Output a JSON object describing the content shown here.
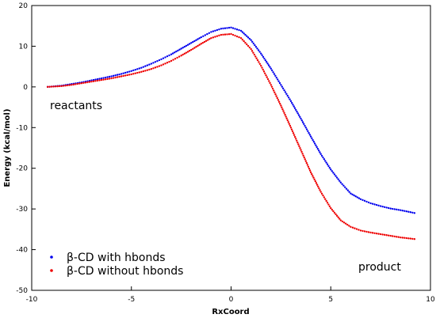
{
  "chart_data": {
    "type": "scatter",
    "xlabel": "RxCoord",
    "ylabel": "Energy (kcal/mol)",
    "xlim": [
      -10,
      10
    ],
    "ylim": [
      -50,
      20
    ],
    "x_ticks": [
      -10,
      -5,
      0,
      5,
      10
    ],
    "y_ticks": [
      20,
      10,
      0,
      -10,
      -20,
      -30,
      -40,
      -50
    ],
    "x_tick_labels": [
      "-10",
      "-5",
      "0",
      "5",
      "10"
    ],
    "y_tick_labels": [
      "20",
      "10",
      "0",
      "-10",
      "-20",
      "-30",
      "-40",
      "-50"
    ],
    "grid": false,
    "legend_position": "bottom-left",
    "annotations": [
      {
        "text": "reactants",
        "x": -9.2,
        "y": -5
      },
      {
        "text": "product",
        "x": 6.3,
        "y": -44.5
      }
    ],
    "series": [
      {
        "name": "β-CD with hbonds",
        "color": "#0000ee",
        "x": [
          -9.2,
          -8.5,
          -8,
          -7.5,
          -7,
          -6.5,
          -6,
          -5.5,
          -5,
          -4.5,
          -4,
          -3.5,
          -3,
          -2.5,
          -2,
          -1.5,
          -1,
          -0.5,
          0,
          0.5,
          1,
          1.5,
          2,
          2.5,
          3,
          3.5,
          4,
          4.5,
          5,
          5.5,
          6,
          6.5,
          7,
          7.5,
          8,
          8.5,
          9.2
        ],
        "y": [
          0,
          0.3,
          0.7,
          1.1,
          1.6,
          2.1,
          2.6,
          3.2,
          3.9,
          4.7,
          5.7,
          6.8,
          8.0,
          9.4,
          10.8,
          12.2,
          13.5,
          14.3,
          14.6,
          13.8,
          11.5,
          8.2,
          4.5,
          0.5,
          -3.5,
          -7.8,
          -12.2,
          -16.5,
          -20.3,
          -23.5,
          -26.2,
          -27.6,
          -28.6,
          -29.3,
          -29.9,
          -30.3,
          -31.0
        ]
      },
      {
        "name": "β-CD without hbonds",
        "color": "#ee0000",
        "x": [
          -9.2,
          -8.5,
          -8,
          -7.5,
          -7,
          -6.5,
          -6,
          -5.5,
          -5,
          -4.5,
          -4,
          -3.5,
          -3,
          -2.5,
          -2,
          -1.5,
          -1,
          -0.5,
          0,
          0.5,
          1,
          1.5,
          2,
          2.5,
          3,
          3.5,
          4,
          4.5,
          5,
          5.5,
          6,
          6.5,
          7,
          7.5,
          8,
          8.5,
          9.2
        ],
        "y": [
          0,
          0.2,
          0.5,
          0.9,
          1.3,
          1.7,
          2.1,
          2.6,
          3.1,
          3.7,
          4.4,
          5.3,
          6.4,
          7.7,
          9.1,
          10.6,
          12.0,
          12.8,
          13.0,
          12.0,
          9.3,
          5.2,
          0.5,
          -4.6,
          -10.0,
          -15.5,
          -21.0,
          -25.8,
          -29.8,
          -32.8,
          -34.4,
          -35.3,
          -35.8,
          -36.2,
          -36.6,
          -37.0,
          -37.4
        ]
      }
    ]
  }
}
